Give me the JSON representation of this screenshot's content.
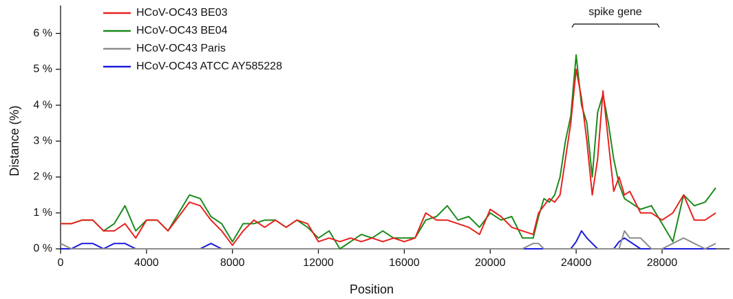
{
  "chart_data": {
    "type": "line",
    "xlabel": "Position",
    "ylabel": "Distance (%)",
    "annotation": "spike gene",
    "legend": "upper left",
    "x": [
      0,
      500,
      1000,
      1500,
      2000,
      2500,
      3000,
      3500,
      4000,
      4500,
      5000,
      5500,
      6000,
      6500,
      7000,
      7500,
      8000,
      8500,
      9000,
      9500,
      10000,
      10500,
      11000,
      11500,
      12000,
      12500,
      13000,
      13500,
      14000,
      14500,
      15000,
      15500,
      16000,
      16500,
      17000,
      17500,
      18000,
      18500,
      19000,
      19500,
      20000,
      20500,
      21000,
      21500,
      22000,
      22250,
      22500,
      22750,
      23000,
      23250,
      23500,
      23750,
      24000,
      24250,
      24500,
      24750,
      25000,
      25250,
      25500,
      25750,
      26000,
      26250,
      26500,
      27000,
      27500,
      28000,
      28500,
      29000,
      29500,
      30000,
      30500
    ],
    "series": [
      {
        "name": "HCoV-OC43 BE03",
        "color": "#e8201e",
        "values": [
          0.7,
          0.7,
          0.8,
          0.8,
          0.5,
          0.5,
          0.7,
          0.3,
          0.8,
          0.8,
          0.5,
          0.9,
          1.3,
          1.2,
          0.8,
          0.5,
          0.1,
          0.5,
          0.8,
          0.6,
          0.8,
          0.6,
          0.8,
          0.7,
          0.2,
          0.3,
          0.2,
          0.3,
          0.2,
          0.3,
          0.2,
          0.3,
          0.2,
          0.3,
          1.0,
          0.8,
          0.8,
          0.7,
          0.6,
          0.4,
          1.1,
          0.9,
          0.6,
          0.5,
          0.4,
          1.0,
          1.2,
          1.4,
          1.3,
          1.5,
          2.5,
          3.5,
          5.0,
          4.2,
          3.0,
          1.5,
          2.5,
          4.4,
          3.0,
          1.6,
          2.0,
          1.5,
          1.6,
          1.0,
          1.0,
          0.8,
          1.0,
          1.5,
          0.8,
          0.8,
          1.0
        ]
      },
      {
        "name": "HCoV-OC43 BE04",
        "color": "#1a8a1a",
        "values": [
          0.7,
          0.7,
          0.8,
          0.8,
          0.5,
          0.7,
          1.2,
          0.5,
          0.8,
          0.8,
          0.5,
          1.0,
          1.5,
          1.4,
          0.9,
          0.7,
          0.2,
          0.7,
          0.7,
          0.8,
          0.8,
          0.6,
          0.8,
          0.6,
          0.3,
          0.5,
          0.0,
          0.2,
          0.4,
          0.3,
          0.5,
          0.3,
          0.3,
          0.3,
          0.8,
          0.9,
          1.2,
          0.8,
          0.9,
          0.6,
          1.0,
          0.8,
          0.9,
          0.3,
          0.3,
          0.9,
          1.4,
          1.3,
          1.5,
          2.0,
          3.0,
          3.7,
          5.4,
          4.0,
          3.5,
          2.0,
          3.8,
          4.3,
          3.5,
          2.5,
          1.8,
          1.4,
          1.3,
          1.1,
          1.2,
          0.7,
          0.2,
          1.5,
          1.2,
          1.3,
          1.7
        ]
      },
      {
        "name": "HCoV-OC43 Paris",
        "color": "#8c8c8c",
        "values": [
          0.15,
          0,
          0,
          0,
          0,
          0,
          0,
          0,
          0,
          0,
          0,
          0,
          0,
          0,
          0,
          0,
          0,
          0,
          0,
          0,
          0,
          0,
          0,
          0,
          0,
          0,
          0,
          0,
          0,
          0,
          0,
          0,
          0,
          0,
          0,
          0,
          0,
          0,
          0,
          0,
          0,
          0,
          0,
          0,
          0.15,
          0.15,
          0,
          0,
          0,
          0,
          0,
          0,
          0,
          0,
          0,
          0,
          0,
          0,
          0,
          0,
          0,
          0.5,
          0.3,
          0.3,
          0,
          0,
          0.15,
          0.3,
          0.15,
          0,
          0.15
        ]
      },
      {
        "name": "HCoV-OC43 ATCC AY585228",
        "color": "#1a1adc",
        "values": [
          0,
          0,
          0.15,
          0.15,
          0,
          0.15,
          0.15,
          0,
          0,
          0,
          0,
          0,
          0,
          0,
          0.15,
          0,
          0,
          0,
          0,
          0,
          0,
          0,
          0,
          0,
          0,
          0,
          0,
          0,
          0,
          0,
          0,
          0,
          0,
          0,
          0,
          0,
          0,
          0,
          0,
          0,
          0,
          0,
          0,
          0,
          0,
          0,
          0,
          0,
          0,
          0,
          0,
          0,
          0.2,
          0.5,
          0.3,
          0.15,
          0,
          0,
          0,
          0,
          0.2,
          0.3,
          0.2,
          0,
          0,
          0,
          0,
          0,
          0,
          0,
          0
        ]
      }
    ],
    "xlim": [
      0,
      31000
    ],
    "ylim": [
      0,
      6.7
    ],
    "xticks": [
      0,
      4000,
      8000,
      12000,
      16000,
      20000,
      24000,
      28000
    ],
    "yticks": [
      {
        "value": 0,
        "label": "0 %"
      },
      {
        "value": 1,
        "label": "1 %"
      },
      {
        "value": 2,
        "label": "2 %"
      },
      {
        "value": 3,
        "label": "3 %"
      },
      {
        "value": 4,
        "label": "4 %"
      },
      {
        "value": 5,
        "label": "5 %"
      },
      {
        "value": 6,
        "label": "6 %"
      }
    ]
  }
}
